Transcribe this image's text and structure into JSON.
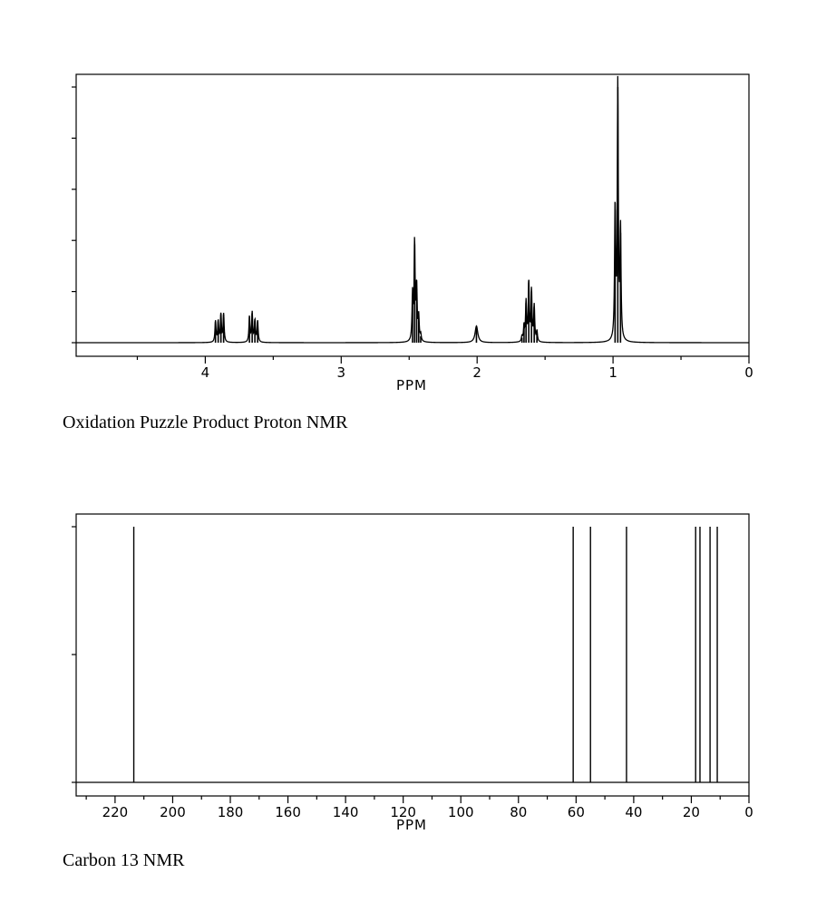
{
  "captions": {
    "proton": "Oxidation Puzzle Product Proton NMR",
    "carbon": "Carbon 13 NMR"
  },
  "chart_data": [
    {
      "type": "line",
      "spectrum": "1H NMR",
      "xlabel": "PPM",
      "ylabel": "",
      "xlim": [
        4.95,
        0.0
      ],
      "x_reversed": true,
      "ylim": [
        0,
        1.0
      ],
      "grid": false,
      "xticks_major": [
        4,
        3,
        2,
        1,
        0
      ],
      "xticks_minor": [
        4.5,
        3.5,
        2.5,
        1.5,
        0.5
      ],
      "yticks_count": 6,
      "line_color": "#000000",
      "width_ppm": 0.0045,
      "peaks": [
        {
          "ppm": 3.925,
          "h": 0.082
        },
        {
          "ppm": 3.905,
          "h": 0.082
        },
        {
          "ppm": 3.885,
          "h": 0.11
        },
        {
          "ppm": 3.865,
          "h": 0.11
        },
        {
          "ppm": 3.675,
          "h": 0.1
        },
        {
          "ppm": 3.655,
          "h": 0.115
        },
        {
          "ppm": 3.635,
          "h": 0.085
        },
        {
          "ppm": 3.615,
          "h": 0.083
        },
        {
          "ppm": 2.475,
          "h": 0.18
        },
        {
          "ppm": 2.46,
          "h": 0.385
        },
        {
          "ppm": 2.445,
          "h": 0.21
        },
        {
          "ppm": 2.43,
          "h": 0.095
        },
        {
          "ppm": 2.415,
          "h": 0.025
        },
        {
          "ppm": 2.005,
          "h": 0.065,
          "w": 0.012
        },
        {
          "ppm": 1.67,
          "h": 0.02
        },
        {
          "ppm": 1.655,
          "h": 0.06
        },
        {
          "ppm": 1.64,
          "h": 0.155
        },
        {
          "ppm": 1.62,
          "h": 0.235
        },
        {
          "ppm": 1.6,
          "h": 0.2
        },
        {
          "ppm": 1.58,
          "h": 0.14
        },
        {
          "ppm": 1.56,
          "h": 0.04
        },
        {
          "ppm": 0.985,
          "h": 0.52
        },
        {
          "ppm": 0.965,
          "h": 1.0
        },
        {
          "ppm": 0.945,
          "h": 0.43
        }
      ]
    },
    {
      "type": "bar",
      "spectrum": "13C NMR",
      "xlabel": "PPM",
      "ylabel": "",
      "xlim": [
        233.5,
        0.0
      ],
      "x_reversed": true,
      "ylim": [
        0,
        1.0
      ],
      "grid": false,
      "xticks_major": [
        220,
        200,
        180,
        160,
        140,
        120,
        100,
        80,
        60,
        40,
        20,
        0
      ],
      "xticks_minor": [
        230,
        210,
        190,
        170,
        150,
        130,
        110,
        90,
        70,
        50,
        30,
        10
      ],
      "yticks_count": 3,
      "line_color": "#000000",
      "peaks_ppm": [
        213.5,
        61.0,
        55.0,
        42.5,
        18.5,
        17.0,
        13.5,
        11.0
      ],
      "heights": [
        1,
        1,
        1,
        1,
        1,
        1,
        1,
        1
      ]
    }
  ]
}
